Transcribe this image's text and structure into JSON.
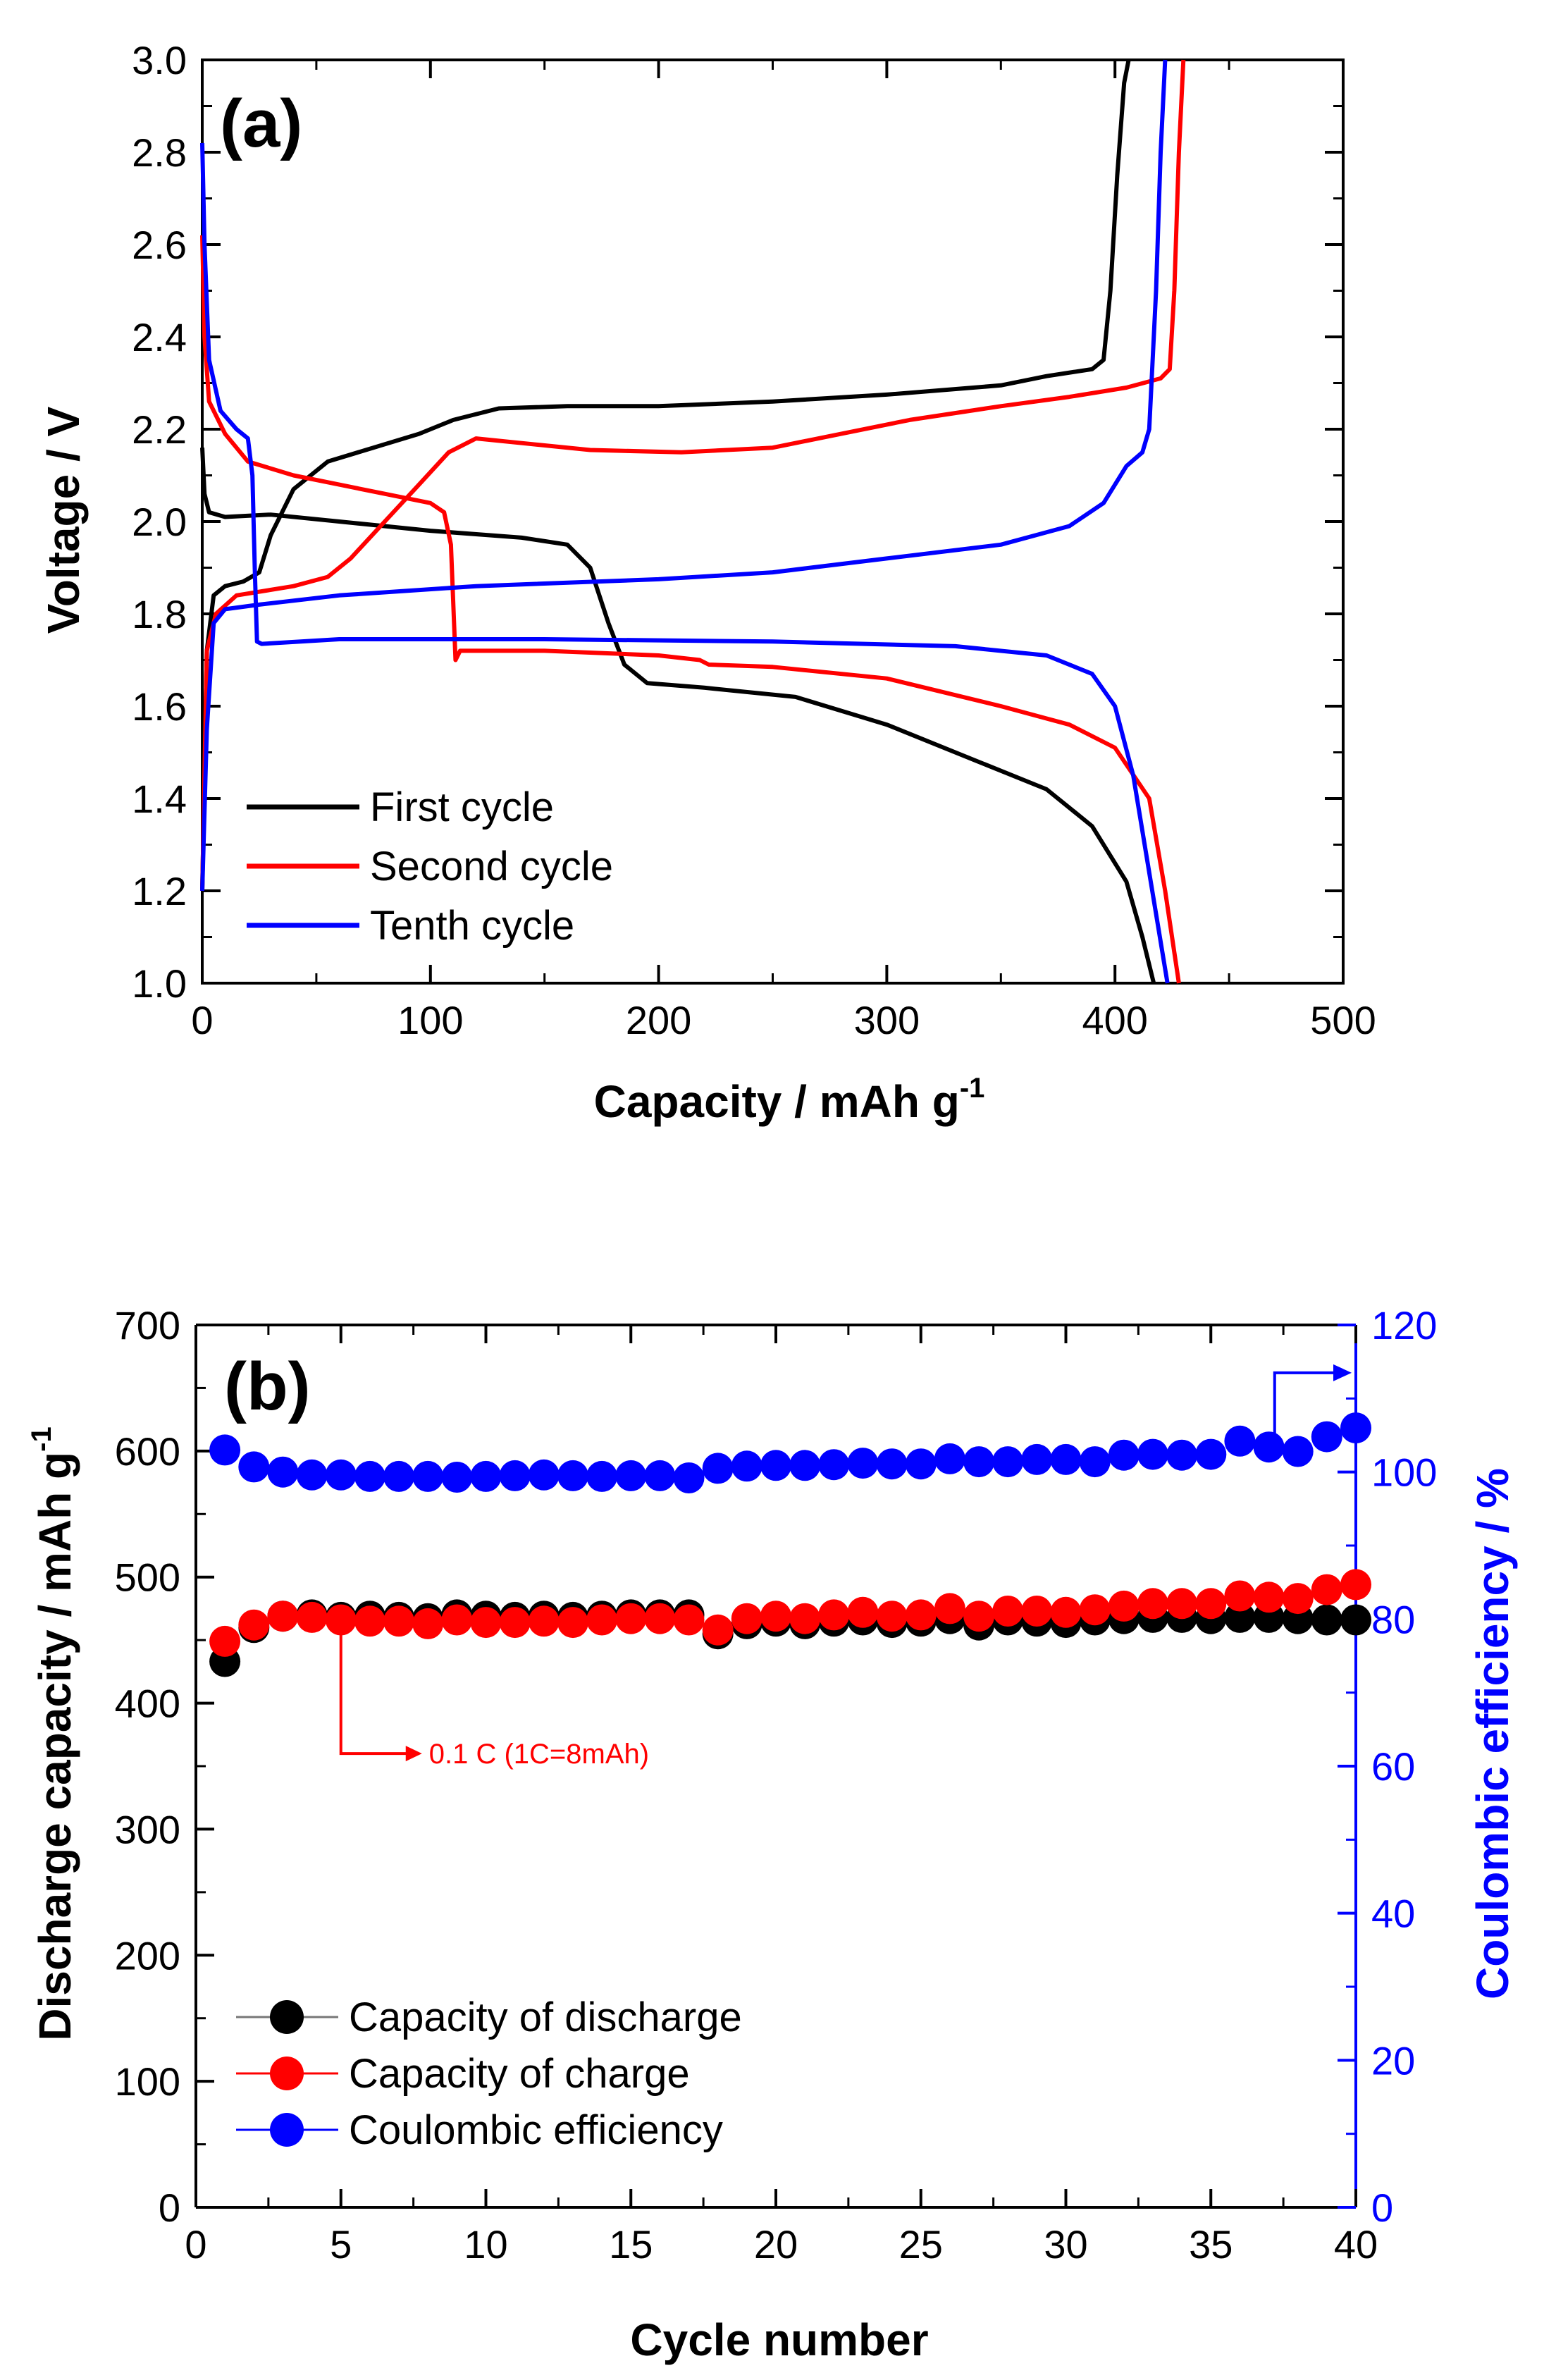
{
  "chart_data": [
    {
      "panel_label": "(a)",
      "type": "line",
      "xlabel": "Capacity / mAh g",
      "xlabel_sup": "-1",
      "ylabel": "Voltage / V",
      "xlim": [
        0,
        500
      ],
      "ylim": [
        1.0,
        3.0
      ],
      "xticks": [
        "0",
        "100",
        "200",
        "300",
        "400",
        "500"
      ],
      "yticks": [
        "1.0",
        "1.2",
        "1.4",
        "1.6",
        "1.8",
        "2.0",
        "2.2",
        "2.4",
        "2.6",
        "2.8",
        "3.0"
      ],
      "legend_position": "bottom-left",
      "series": [
        {
          "name": "First cycle",
          "color": "#000000",
          "discharge": [
            [
              0,
              2.16
            ],
            [
              1,
              2.06
            ],
            [
              3,
              2.02
            ],
            [
              10,
              2.01
            ],
            [
              30,
              2.015
            ],
            [
              60,
              2.0
            ],
            [
              100,
              1.98
            ],
            [
              140,
              1.965
            ],
            [
              160,
              1.95
            ],
            [
              170,
              1.9
            ],
            [
              178,
              1.78
            ],
            [
              185,
              1.69
            ],
            [
              195,
              1.65
            ],
            [
              220,
              1.64
            ],
            [
              260,
              1.62
            ],
            [
              300,
              1.56
            ],
            [
              340,
              1.48
            ],
            [
              370,
              1.42
            ],
            [
              390,
              1.34
            ],
            [
              405,
              1.22
            ],
            [
              412,
              1.1
            ],
            [
              417,
              1.0
            ]
          ],
          "charge": [
            [
              0,
              1.2
            ],
            [
              2,
              1.72
            ],
            [
              5,
              1.84
            ],
            [
              10,
              1.86
            ],
            [
              18,
              1.87
            ],
            [
              25,
              1.89
            ],
            [
              30,
              1.97
            ],
            [
              40,
              2.07
            ],
            [
              55,
              2.13
            ],
            [
              75,
              2.16
            ],
            [
              95,
              2.19
            ],
            [
              110,
              2.22
            ],
            [
              130,
              2.245
            ],
            [
              160,
              2.25
            ],
            [
              200,
              2.25
            ],
            [
              250,
              2.26
            ],
            [
              300,
              2.275
            ],
            [
              350,
              2.295
            ],
            [
              370,
              2.315
            ],
            [
              390,
              2.33
            ],
            [
              395,
              2.35
            ],
            [
              398,
              2.5
            ],
            [
              401,
              2.75
            ],
            [
              404,
              2.95
            ],
            [
              406,
              3.0
            ]
          ]
        },
        {
          "name": "Second cycle",
          "color": "#ff0000",
          "discharge": [
            [
              0,
              2.62
            ],
            [
              1,
              2.4
            ],
            [
              3,
              2.26
            ],
            [
              10,
              2.19
            ],
            [
              20,
              2.13
            ],
            [
              40,
              2.1
            ],
            [
              60,
              2.08
            ],
            [
              80,
              2.06
            ],
            [
              100,
              2.04
            ],
            [
              106,
              2.02
            ],
            [
              109,
              1.95
            ],
            [
              111,
              1.7
            ],
            [
              113,
              1.72
            ],
            [
              150,
              1.72
            ],
            [
              200,
              1.71
            ],
            [
              218,
              1.7
            ],
            [
              222,
              1.69
            ],
            [
              250,
              1.685
            ],
            [
              300,
              1.66
            ],
            [
              350,
              1.6
            ],
            [
              380,
              1.56
            ],
            [
              400,
              1.51
            ],
            [
              415,
              1.4
            ],
            [
              422,
              1.2
            ],
            [
              428,
              1.0
            ]
          ],
          "charge": [
            [
              0,
              1.2
            ],
            [
              2,
              1.72
            ],
            [
              6,
              1.8
            ],
            [
              15,
              1.84
            ],
            [
              40,
              1.86
            ],
            [
              55,
              1.88
            ],
            [
              65,
              1.92
            ],
            [
              80,
              2.0
            ],
            [
              95,
              2.08
            ],
            [
              108,
              2.15
            ],
            [
              120,
              2.18
            ],
            [
              140,
              2.17
            ],
            [
              170,
              2.155
            ],
            [
              210,
              2.15
            ],
            [
              250,
              2.16
            ],
            [
              280,
              2.19
            ],
            [
              310,
              2.22
            ],
            [
              350,
              2.25
            ],
            [
              380,
              2.27
            ],
            [
              405,
              2.29
            ],
            [
              420,
              2.31
            ],
            [
              424,
              2.33
            ],
            [
              426,
              2.5
            ],
            [
              428,
              2.8
            ],
            [
              430,
              3.0
            ]
          ]
        },
        {
          "name": "Tenth cycle",
          "color": "#0000ff",
          "discharge": [
            [
              0,
              2.82
            ],
            [
              1,
              2.6
            ],
            [
              3,
              2.35
            ],
            [
              8,
              2.24
            ],
            [
              15,
              2.2
            ],
            [
              20,
              2.18
            ],
            [
              22,
              2.1
            ],
            [
              23,
              1.9
            ],
            [
              24,
              1.74
            ],
            [
              26,
              1.735
            ],
            [
              60,
              1.745
            ],
            [
              150,
              1.745
            ],
            [
              250,
              1.74
            ],
            [
              330,
              1.73
            ],
            [
              370,
              1.71
            ],
            [
              390,
              1.67
            ],
            [
              400,
              1.6
            ],
            [
              408,
              1.45
            ],
            [
              413,
              1.3
            ],
            [
              418,
              1.15
            ],
            [
              423,
              1.0
            ]
          ],
          "charge": [
            [
              0,
              1.2
            ],
            [
              2,
              1.55
            ],
            [
              5,
              1.78
            ],
            [
              10,
              1.81
            ],
            [
              25,
              1.82
            ],
            [
              60,
              1.84
            ],
            [
              120,
              1.86
            ],
            [
              200,
              1.875
            ],
            [
              250,
              1.89
            ],
            [
              300,
              1.92
            ],
            [
              350,
              1.95
            ],
            [
              380,
              1.99
            ],
            [
              395,
              2.04
            ],
            [
              405,
              2.12
            ],
            [
              412,
              2.15
            ],
            [
              415,
              2.2
            ],
            [
              418,
              2.5
            ],
            [
              420,
              2.8
            ],
            [
              422,
              3.0
            ]
          ]
        }
      ]
    },
    {
      "panel_label": "(b)",
      "type": "scatter",
      "xlabel": "Cycle number",
      "ylabel_left": "Discharge capacity / mAh g",
      "ylabel_left_sup": "-1",
      "ylabel_right": "Coulombic efficiency / %",
      "xlim": [
        0,
        40
      ],
      "ylim_left": [
        0,
        700
      ],
      "ylim_right": [
        0,
        120
      ],
      "xticks": [
        "0",
        "5",
        "10",
        "15",
        "20",
        "25",
        "30",
        "35",
        "40"
      ],
      "yticks_left": [
        "0",
        "100",
        "200",
        "300",
        "400",
        "500",
        "600",
        "700"
      ],
      "yticks_right": [
        "0",
        "20",
        "40",
        "60",
        "80",
        "100",
        "120"
      ],
      "annotation": "0.1 C (1C=8mAh)",
      "legend_position": "bottom-left",
      "x": [
        1,
        2,
        3,
        4,
        5,
        6,
        7,
        8,
        9,
        10,
        11,
        12,
        13,
        14,
        15,
        16,
        17,
        18,
        19,
        20,
        21,
        22,
        23,
        24,
        25,
        26,
        27,
        28,
        29,
        30,
        31,
        32,
        33,
        34,
        35,
        36,
        37,
        38,
        39,
        40
      ],
      "series": [
        {
          "name": "Capacity of discharge",
          "axis": "left",
          "color": "#000000",
          "values": [
            433,
            460,
            469,
            470,
            468,
            469,
            468,
            467,
            470,
            469,
            468,
            469,
            468,
            469,
            470,
            470,
            470,
            455,
            463,
            465,
            463,
            465,
            466,
            464,
            465,
            467,
            462,
            466,
            465,
            464,
            466,
            467,
            468,
            468,
            467,
            468,
            468,
            467,
            466,
            466
          ]
        },
        {
          "name": "Capacity of charge",
          "axis": "left",
          "color": "#ff0000",
          "values": [
            449,
            462,
            469,
            468,
            466,
            465,
            465,
            463,
            466,
            464,
            464,
            465,
            464,
            466,
            467,
            467,
            466,
            458,
            467,
            469,
            467,
            470,
            472,
            469,
            470,
            475,
            469,
            473,
            473,
            472,
            474,
            477,
            479,
            479,
            479,
            485,
            484,
            483,
            490,
            494
          ]
        },
        {
          "name": "Coulombic efficiency",
          "axis": "right",
          "color": "#0000ff",
          "values": [
            103,
            100.7,
            100,
            99.6,
            99.6,
            99.4,
            99.4,
            99.4,
            99.3,
            99.4,
            99.5,
            99.6,
            99.5,
            99.4,
            99.5,
            99.5,
            99.2,
            100.5,
            100.8,
            100.9,
            100.9,
            101,
            101.2,
            101.1,
            101.1,
            101.8,
            101.4,
            101.4,
            101.7,
            101.7,
            101.4,
            102.3,
            102.4,
            102.3,
            102.4,
            104.2,
            103.4,
            102.8,
            104.8,
            106
          ]
        }
      ]
    }
  ]
}
